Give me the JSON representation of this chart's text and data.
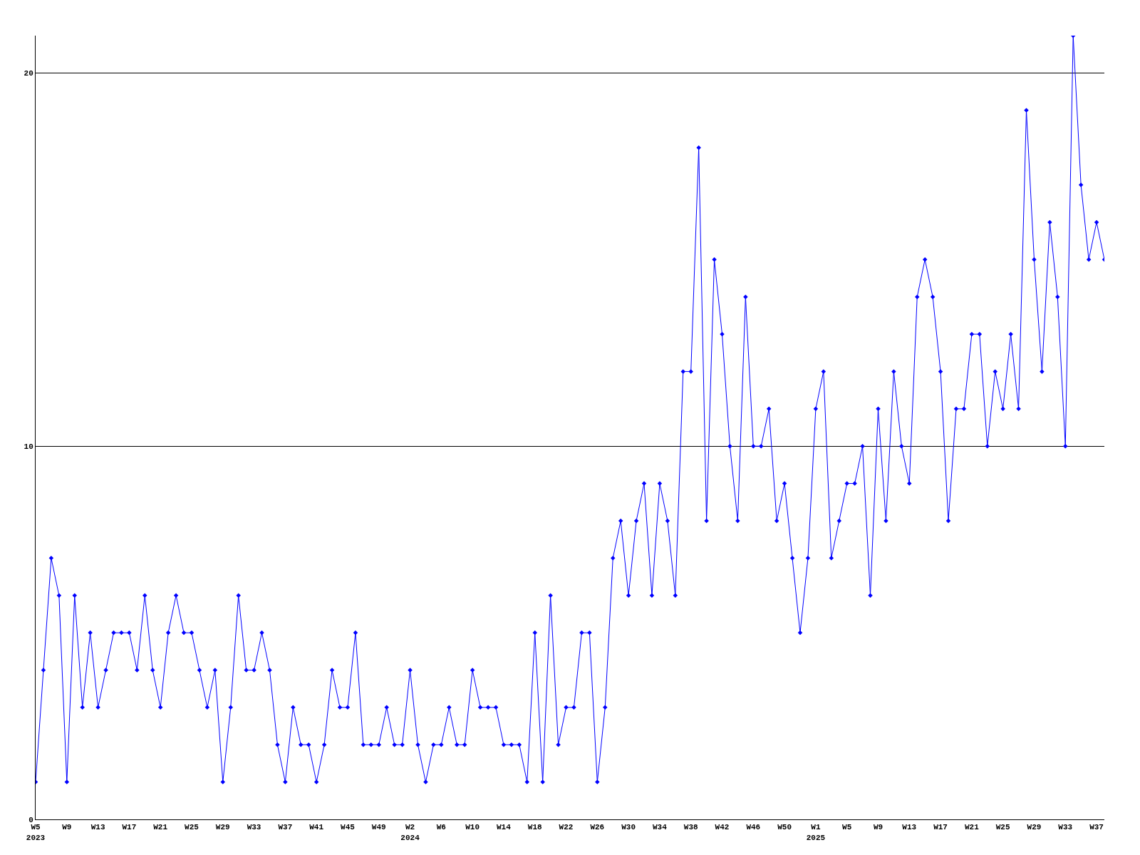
{
  "chart_data": {
    "type": "line",
    "categories": [
      "W5\n2023",
      null,
      null,
      null,
      "W9",
      null,
      null,
      null,
      "W13",
      null,
      null,
      null,
      "W17",
      null,
      null,
      null,
      "W21",
      null,
      null,
      null,
      "W25",
      null,
      null,
      null,
      "W29",
      null,
      null,
      null,
      "W33",
      null,
      null,
      null,
      "W37",
      null,
      null,
      null,
      "W41",
      null,
      null,
      null,
      "W45",
      null,
      null,
      null,
      "W49",
      null,
      null,
      null,
      "W2\n2024",
      null,
      null,
      null,
      "W6",
      null,
      null,
      null,
      "W10",
      null,
      null,
      null,
      "W14",
      null,
      null,
      null,
      "W18",
      null,
      null,
      null,
      "W22",
      null,
      null,
      null,
      "W26",
      null,
      null,
      null,
      "W30",
      null,
      null,
      null,
      "W34",
      null,
      null,
      null,
      "W38",
      null,
      null,
      null,
      "W42",
      null,
      null,
      null,
      "W46",
      null,
      null,
      null,
      "W50",
      null,
      null,
      null,
      "W1\n2025",
      null,
      null,
      null,
      "W5",
      null,
      null,
      null,
      "W9",
      null,
      null,
      null,
      "W13",
      null,
      null,
      null,
      "W17",
      null,
      null,
      null,
      "W21",
      null,
      null,
      null,
      "W25",
      null,
      null,
      null,
      "W29",
      null,
      null,
      null,
      "W33",
      null,
      null,
      null,
      "W37",
      null
    ],
    "series": [
      {
        "color": "#0000ff",
        "values": [
          1,
          4,
          7,
          6,
          1,
          6,
          3,
          5,
          3,
          4,
          5,
          5,
          5,
          4,
          6,
          4,
          3,
          5,
          6,
          5,
          5,
          4,
          3,
          4,
          1,
          3,
          6,
          4,
          4,
          5,
          4,
          2,
          1,
          3,
          2,
          2,
          1,
          2,
          4,
          3,
          3,
          5,
          2,
          2,
          2,
          3,
          2,
          2,
          4,
          2,
          1,
          2,
          2,
          3,
          2,
          2,
          4,
          3,
          3,
          3,
          2,
          2,
          2,
          1,
          5,
          1,
          6,
          2,
          3,
          3,
          5,
          5,
          1,
          3,
          7,
          8,
          6,
          8,
          9,
          6,
          9,
          8,
          6,
          12,
          12,
          18,
          8,
          15,
          13,
          10,
          8,
          14,
          10,
          10,
          11,
          8,
          9,
          7,
          5,
          7,
          11,
          12,
          7,
          8,
          9,
          9,
          10,
          6,
          11,
          8,
          12,
          10,
          9,
          14,
          15,
          14,
          12,
          8,
          11,
          11,
          13,
          13,
          10,
          12,
          11,
          13,
          11,
          19,
          15,
          12,
          16,
          14,
          10,
          21,
          17,
          15,
          16,
          15
        ]
      }
    ],
    "ylim": [
      0,
      21
    ],
    "yticks": [
      0,
      10,
      20
    ],
    "grid": "y",
    "marker": "diamond",
    "line_style": "solid"
  }
}
